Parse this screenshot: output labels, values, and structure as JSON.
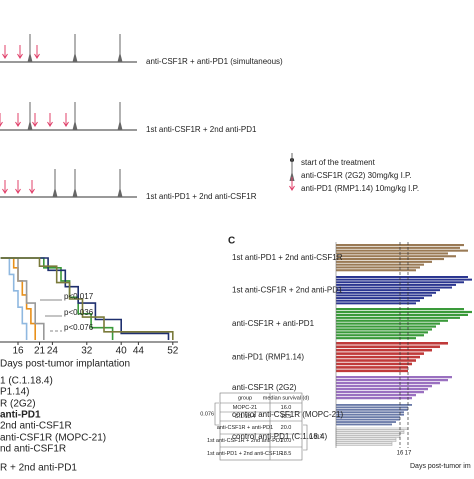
{
  "panel_a": {
    "rows": [
      "anti-CSF1R + anti-PD1 (simultaneous)",
      "1st anti-CSF1R + 2nd anti-PD1",
      "1st anti-PD1 + 2nd anti-CSF1R"
    ],
    "legend": [
      "start of the treatment",
      "anti-CSF1R (2G2) 30mg/kg I.P.",
      "anti-PD1 (RMP1.14) 10mg/kg I.P."
    ]
  },
  "panel_b": {
    "type": "line",
    "xlabel": "Days post-tumor implantation",
    "xlim": [
      12,
      52
    ],
    "xticks": [
      16,
      21,
      24,
      32,
      40,
      44,
      52
    ],
    "ylim": [
      0,
      100
    ],
    "pvalues": [
      "p<0.017",
      "p<0.036",
      "p<0.076"
    ],
    "series": [
      {
        "color": "#e8901a",
        "x": [
          12,
          15,
          16,
          17,
          18,
          19,
          20
        ],
        "y": [
          100,
          88,
          72,
          55,
          38,
          20,
          0
        ]
      },
      {
        "color": "#8fb8e0",
        "x": [
          12,
          14,
          15,
          16,
          17,
          18
        ],
        "y": [
          100,
          80,
          60,
          40,
          20,
          0
        ]
      },
      {
        "color": "#999999",
        "x": [
          12,
          16,
          18,
          20,
          22
        ],
        "y": [
          100,
          72,
          45,
          20,
          0
        ]
      },
      {
        "color": "#3a9a3a",
        "x": [
          12,
          22,
          26,
          28,
          30,
          33,
          38
        ],
        "y": [
          100,
          88,
          72,
          52,
          32,
          15,
          0
        ]
      },
      {
        "color": "#1e2f6e",
        "x": [
          12,
          23,
          27,
          30,
          34,
          40,
          51
        ],
        "y": [
          100,
          85,
          65,
          45,
          25,
          8,
          0
        ]
      },
      {
        "color": "#7a7a3a",
        "x": [
          12,
          21,
          25,
          28,
          31,
          36,
          52
        ],
        "y": [
          100,
          90,
          70,
          50,
          28,
          10,
          0
        ]
      }
    ],
    "legend": [
      "1 (C.1.18.4)",
      "P1.14)",
      "R (2G2)",
      "anti-PD1",
      "2nd anti-CSF1R",
      "anti-CSF1R (MOPC-21)",
      "nd anti-CSF1R",
      "R + 2nd anti-PD1"
    ],
    "table": {
      "header": [
        "group",
        "median survival (d)"
      ],
      "rows": [
        [
          "MOPC-21",
          "16.0"
        ],
        [
          "C.1.18.4",
          "15.5"
        ],
        [
          "anti-CSF1R + anti-PD1",
          "20.0"
        ],
        [
          "1st anti-CSF1R + 2nd anti-PD1",
          "20.0"
        ],
        [
          "1st anti-PD1 + 2nd anti-CSF1R",
          "18.5"
        ]
      ],
      "brackets": [
        "0.076",
        "0.017"
      ]
    }
  },
  "panel_c": {
    "type": "bar",
    "label": "C",
    "xlim": [
      8,
      25
    ],
    "xticks": [
      16,
      17
    ],
    "xlabel": "Days post-tumor im",
    "groups": [
      {
        "name": "1st anti-PD1 + 2nd anti-CSF1R",
        "color": "#9a7a55",
        "values": [
          24,
          23.5,
          24.5,
          22,
          23,
          21.5,
          20,
          19,
          18.5,
          18
        ]
      },
      {
        "name": "1st anti-CSF1R + 2nd anti-PD1",
        "color": "#2a3590",
        "values": [
          24.5,
          25,
          24,
          23,
          22.5,
          21,
          20.5,
          20,
          19,
          18.5,
          18
        ]
      },
      {
        "name": "anti-CSF1R + anti-PD1",
        "color": "#3a9a3a",
        "values": [
          24,
          25,
          24.5,
          23.5,
          22,
          21,
          20.5,
          20,
          19.5,
          19,
          18
        ]
      },
      {
        "name": "anti-PD1 (RMP1.14)",
        "color": "#c03a3a",
        "values": [
          22,
          21,
          20,
          19,
          18.5,
          18,
          17.5,
          17,
          17
        ]
      },
      {
        "name": "anti-CSF1R (2G2)",
        "color": "#9a70c0",
        "values": [
          22.5,
          22,
          21,
          20,
          19.5,
          19,
          18,
          17.5
        ]
      },
      {
        "name": "control anti-CSF1R (MOPC-21)",
        "color": "#6a7aa8",
        "values": [
          17.5,
          17,
          17,
          16.5,
          16.5,
          16,
          16,
          15.5,
          15
        ]
      },
      {
        "name": "control anti-PD1 (C.1.18.4)",
        "color": "#9a9a9a",
        "values": [
          17,
          16.5,
          16.5,
          16,
          16,
          15.5,
          15.5,
          15,
          15
        ]
      }
    ]
  }
}
